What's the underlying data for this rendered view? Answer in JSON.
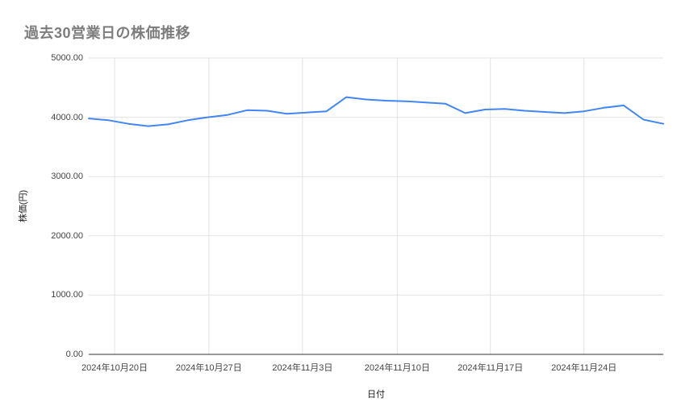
{
  "chart_data": {
    "type": "line",
    "title": "過去30営業日の株価推移",
    "xlabel": "日付",
    "ylabel": "株価(円)",
    "ylim": [
      0,
      5000
    ],
    "grid": true,
    "legend": "none",
    "line_color": "#4285f4",
    "grid_color": "#e3e3e3",
    "axis_color": "#333333",
    "y_ticks": [
      0,
      1000,
      2000,
      3000,
      4000,
      5000
    ],
    "y_tick_labels": [
      "0.00",
      "1000.00",
      "2000.00",
      "3000.00",
      "4000.00",
      "5000.00"
    ],
    "x_tick_labels": [
      "2024年10月20日",
      "2024年10月27日",
      "2024年11月3日",
      "2024年11月10日",
      "2024年11月17日",
      "2024年11月24日"
    ],
    "x_tick_positions": [
      0.045,
      0.209,
      0.372,
      0.537,
      0.699,
      0.862
    ],
    "values": [
      3980,
      3950,
      3890,
      3850,
      3880,
      3950,
      4000,
      4040,
      4120,
      4110,
      4060,
      4080,
      4100,
      4340,
      4300,
      4280,
      4270,
      4250,
      4230,
      4070,
      4130,
      4140,
      4110,
      4090,
      4070,
      4100,
      4160,
      4200,
      3960,
      3890
    ]
  }
}
